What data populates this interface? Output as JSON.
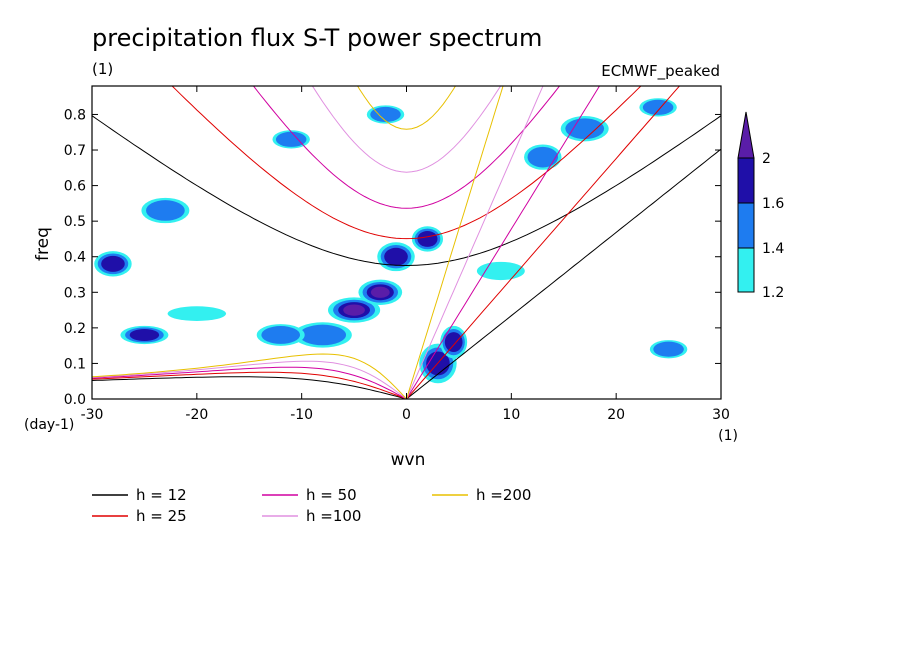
{
  "chart_data": {
    "type": "heatmap",
    "title": "precipitation flux S-T power spectrum",
    "subtitle_left": "(1)",
    "subtitle_right": "ECMWF_peaked",
    "xlabel": "wvn",
    "ylabel": "freq",
    "x_unit": "(1)",
    "y_unit": "(day-1)",
    "xlim": [
      -30,
      30
    ],
    "ylim": [
      0,
      0.88
    ],
    "xticks": [
      -30,
      -20,
      -10,
      0,
      10,
      20,
      30
    ],
    "xtick_labels": [
      "-30",
      "-20",
      "-10",
      "0",
      "10",
      "20",
      "30"
    ],
    "yticks": [
      0,
      0.1,
      0.2,
      0.3,
      0.4,
      0.5,
      0.6,
      0.7,
      0.8
    ],
    "ytick_labels": [
      "0.0",
      "0.1",
      "0.2",
      "0.3",
      "0.4",
      "0.5",
      "0.6",
      "0.7",
      "0.8"
    ],
    "colorbar": {
      "levels": [
        1.2,
        1.4,
        1.6,
        2
      ],
      "labels": [
        "1.2",
        "1.4",
        "1.6",
        "2"
      ],
      "colors": [
        "#33f0f0",
        "#1e7cf0",
        "#1f0fa8",
        "#5a1da8"
      ]
    },
    "contour_regions": [
      {
        "x": -5,
        "y": 0.25,
        "rx": 2.2,
        "ry": 0.03,
        "level": 3
      },
      {
        "x": -2.5,
        "y": 0.3,
        "rx": 1.8,
        "ry": 0.03,
        "level": 3
      },
      {
        "x": -1,
        "y": 0.4,
        "rx": 1.5,
        "ry": 0.035,
        "level": 2
      },
      {
        "x": 2,
        "y": 0.45,
        "rx": 1.2,
        "ry": 0.03,
        "level": 2
      },
      {
        "x": 3,
        "y": 0.1,
        "rx": 1.5,
        "ry": 0.05,
        "level": 2
      },
      {
        "x": 4.5,
        "y": 0.16,
        "rx": 1.0,
        "ry": 0.04,
        "level": 2
      },
      {
        "x": -8,
        "y": 0.18,
        "rx": 2.5,
        "ry": 0.03,
        "level": 1
      },
      {
        "x": -28,
        "y": 0.38,
        "rx": 1.5,
        "ry": 0.03,
        "level": 2
      },
      {
        "x": -25,
        "y": 0.18,
        "rx": 2.0,
        "ry": 0.02,
        "level": 2
      },
      {
        "x": -23,
        "y": 0.53,
        "rx": 2.0,
        "ry": 0.03,
        "level": 1
      },
      {
        "x": -12,
        "y": 0.18,
        "rx": 2.0,
        "ry": 0.025,
        "level": 1
      },
      {
        "x": -11,
        "y": 0.73,
        "rx": 1.5,
        "ry": 0.02,
        "level": 1
      },
      {
        "x": -2,
        "y": 0.8,
        "rx": 1.5,
        "ry": 0.02,
        "level": 1
      },
      {
        "x": 13,
        "y": 0.68,
        "rx": 1.5,
        "ry": 0.03,
        "level": 1
      },
      {
        "x": 17,
        "y": 0.76,
        "rx": 2.0,
        "ry": 0.03,
        "level": 1
      },
      {
        "x": 24,
        "y": 0.82,
        "rx": 1.5,
        "ry": 0.02,
        "level": 1
      },
      {
        "x": 25,
        "y": 0.14,
        "rx": 1.5,
        "ry": 0.02,
        "level": 1
      },
      {
        "x": -20,
        "y": 0.24,
        "rx": 2.5,
        "ry": 0.015,
        "level": 0
      },
      {
        "x": 9,
        "y": 0.36,
        "rx": 2.0,
        "ry": 0.02,
        "level": 0
      }
    ],
    "dispersion_curves": [
      {
        "name": "h = 12",
        "h": 12,
        "color": "#000000"
      },
      {
        "name": "h = 25",
        "h": 25,
        "color": "#e00000"
      },
      {
        "name": "h = 50",
        "h": 50,
        "color": "#d000a0"
      },
      {
        "name": "h =100",
        "h": 100,
        "color": "#e090e0"
      },
      {
        "name": "h =200",
        "h": 200,
        "color": "#e8c000"
      }
    ],
    "legend": [
      {
        "label": "h = 12",
        "color": "#000000"
      },
      {
        "label": "h = 50",
        "color": "#d000a0"
      },
      {
        "label": "h =200",
        "color": "#e8c000"
      },
      {
        "label": "h = 25",
        "color": "#e00000"
      },
      {
        "label": "h =100",
        "color": "#e090e0"
      }
    ]
  }
}
